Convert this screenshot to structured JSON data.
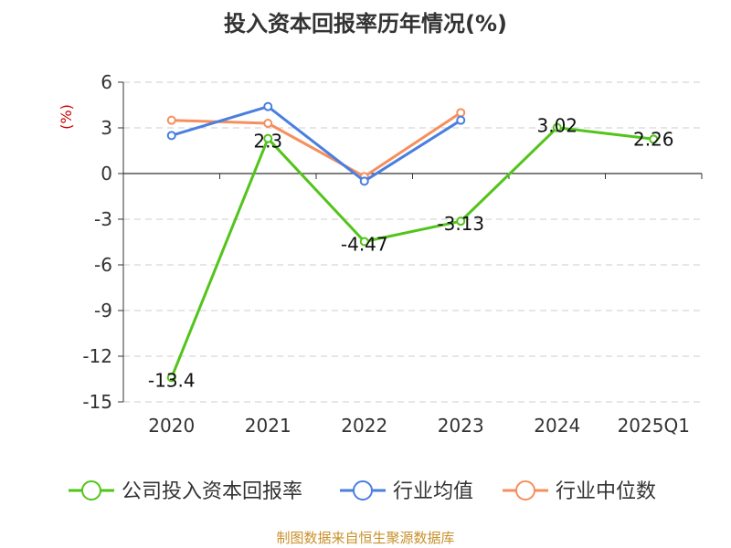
{
  "chart_data": {
    "type": "line",
    "title": "投入资本回报率历年情况(%)",
    "ylabel": "(%)",
    "categories": [
      "2020",
      "2021",
      "2022",
      "2023",
      "2024",
      "2025Q1"
    ],
    "ylim": [
      -15,
      6
    ],
    "yticks": [
      6,
      3,
      0,
      -3,
      -6,
      -9,
      -12,
      -15
    ],
    "grid": true,
    "legend_position": "bottom",
    "series": [
      {
        "name": "公司投入资本回报率",
        "color": "#52c41a",
        "values": [
          -13.4,
          2.3,
          -4.47,
          -3.13,
          3.02,
          2.26
        ],
        "labels": [
          "-13.4",
          "2.3",
          "-4.47",
          "-3.13",
          "3.02",
          "2.26"
        ]
      },
      {
        "name": "行业均值",
        "color": "#4a7fe0",
        "values": [
          2.5,
          4.4,
          -0.5,
          3.5,
          null,
          null
        ]
      },
      {
        "name": "行业中位数",
        "color": "#f5905e",
        "values": [
          3.5,
          3.3,
          -0.2,
          4.0,
          null,
          null
        ]
      }
    ]
  },
  "footer": {
    "source": "制图数据来自恒生聚源数据库"
  }
}
